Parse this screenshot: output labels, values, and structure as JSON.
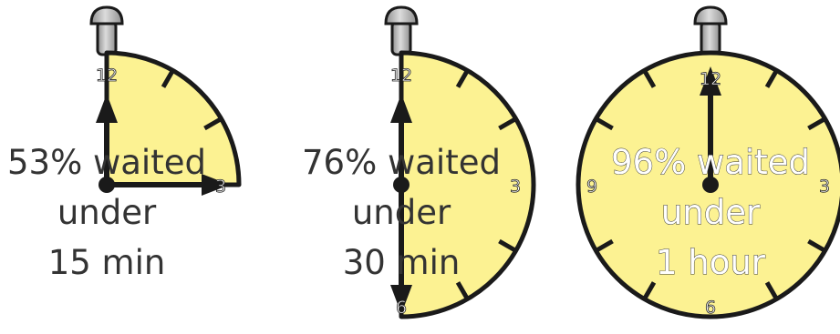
{
  "colors": {
    "face": "#fcf292",
    "outline": "#1a1a1a",
    "hand": "#1a1a1a",
    "caption_text": "#333333",
    "crown": "#b5b5b5"
  },
  "stopwatches": [
    {
      "percent_label": "53% waited",
      "under_label": "under",
      "duration_label": "15 min",
      "numerals": {
        "top": "12",
        "right": "3"
      },
      "filled_fraction": 0.25
    },
    {
      "percent_label": "76% waited",
      "under_label": "under",
      "duration_label": "30 min",
      "numerals": {
        "top": "12",
        "right": "3",
        "bottom": "6"
      },
      "filled_fraction": 0.5
    },
    {
      "percent_label": "96% waited",
      "under_label": "under",
      "duration_label": "1 hour",
      "numerals": {
        "top": "12",
        "right": "3",
        "bottom": "6",
        "left": "9"
      },
      "filled_fraction": 1.0
    }
  ]
}
